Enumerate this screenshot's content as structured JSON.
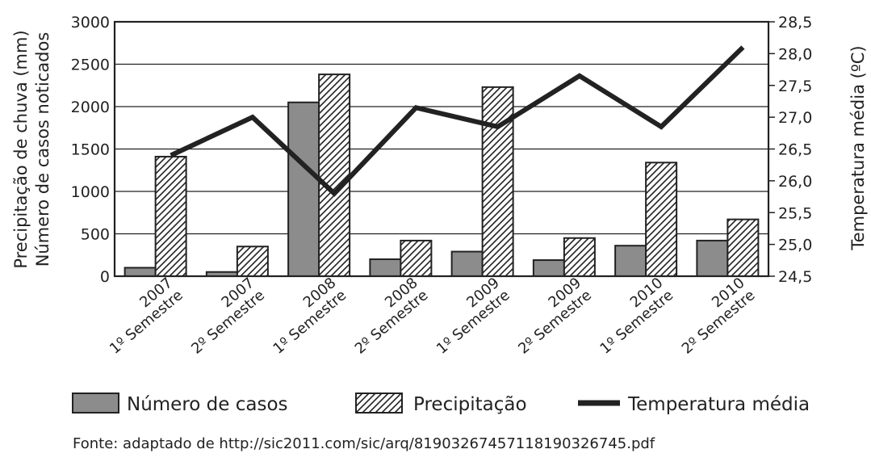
{
  "chart_data": {
    "type": "bar",
    "categories": [
      [
        "2007",
        "1º Semestre"
      ],
      [
        "2007",
        "2º Semestre"
      ],
      [
        "2008",
        "1º Semestre"
      ],
      [
        "2008",
        "2º Semestre"
      ],
      [
        "2009",
        "1º Semestre"
      ],
      [
        "2009",
        "2º Semestre"
      ],
      [
        "2010",
        "1º Semestre"
      ],
      [
        "2010",
        "2º Semestre"
      ]
    ],
    "series": [
      {
        "name": "Número de casos",
        "axis": "left",
        "kind": "bar",
        "color": "#8c8c8c",
        "values": [
          100,
          50,
          2050,
          200,
          290,
          190,
          360,
          420
        ]
      },
      {
        "name": "Precipitação",
        "axis": "left",
        "kind": "bar-hatched",
        "color": "#ffffff",
        "values": [
          1410,
          350,
          2380,
          420,
          2230,
          450,
          1340,
          670
        ]
      },
      {
        "name": "Temperatura média",
        "axis": "right",
        "kind": "line",
        "color": "#222222",
        "values": [
          26.4,
          27.0,
          25.8,
          27.15,
          26.85,
          27.65,
          26.85,
          28.1
        ]
      }
    ],
    "y_left": {
      "label_lines": [
        "Precipitação de chuva (mm)",
        "Número de casos noticados"
      ],
      "ylim": [
        0,
        3000
      ],
      "ticks": [
        0,
        500,
        1000,
        1500,
        2000,
        2500,
        3000
      ],
      "tick_labels": [
        "0",
        "500",
        "1000",
        "1500",
        "2000",
        "2500",
        "3000"
      ]
    },
    "y_right": {
      "label": "Temperatura média (ºC)",
      "ylim": [
        24.5,
        28.5
      ],
      "ticks": [
        24.5,
        25.0,
        25.5,
        26.0,
        26.5,
        27.0,
        27.5,
        28.0,
        28.5
      ],
      "tick_labels": [
        "24,5",
        "25,0",
        "25,5",
        "26,0",
        "26,5",
        "27,0",
        "27,5",
        "28,0",
        "28,5"
      ]
    },
    "grid": true,
    "legend": {
      "position": "bottom",
      "items": [
        "Número de casos",
        "Precipitação",
        "Temperatura média"
      ]
    }
  },
  "source": "Fonte: adaptado de http://sic2011.com/sic/arq/81903267457118190326745.pdf"
}
